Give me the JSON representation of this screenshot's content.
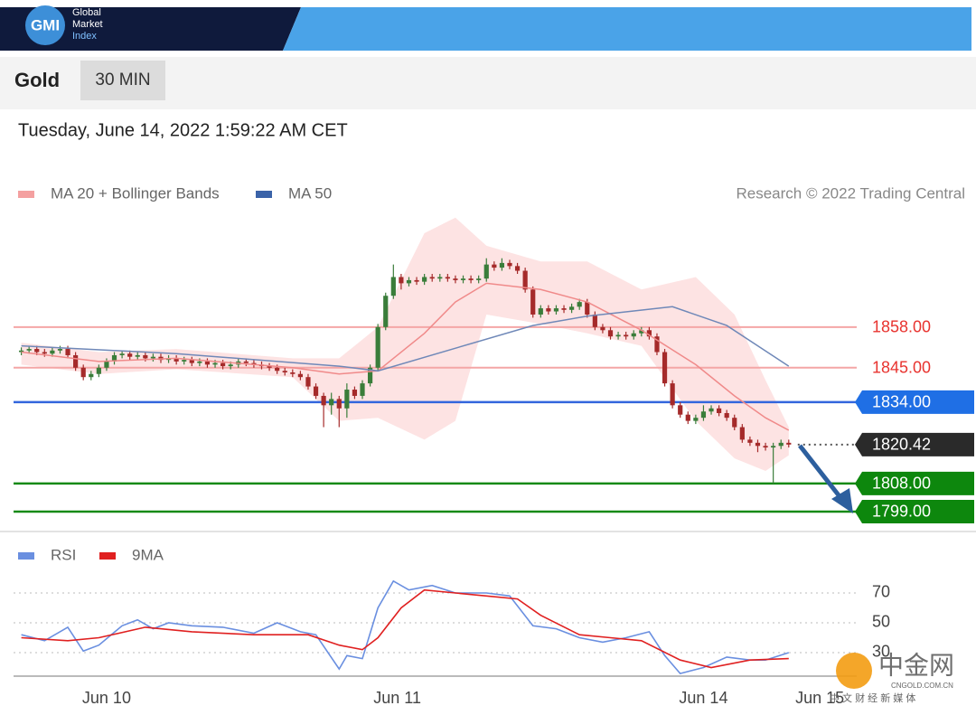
{
  "header": {
    "logo": "GMI",
    "brand": [
      "Global",
      "Market",
      "Index"
    ],
    "instrument": "Gold",
    "timeframe": "30 MIN",
    "timestamp": "Tuesday, June 14, 2022 1:59:22 AM CET"
  },
  "watermark": {
    "name": "中金网",
    "site": "CNGOLD.COM.CN",
    "tagline": "中 文 财 经 新 媒 体"
  },
  "chart_data": [
    {
      "type": "candlestick",
      "credit": "Research © 2022 Trading Central",
      "xlim": [
        -1,
        108
      ],
      "ylim": [
        1793.5,
        1893.5
      ],
      "up_color": "#3a7d3a",
      "down_color": "#a52a2a",
      "candles": {
        "open": [
          1850,
          1850.5,
          1851,
          1850,
          1849.5,
          1850.5,
          1851,
          1849,
          1845,
          1842,
          1843,
          1845,
          1847,
          1849,
          1849.5,
          1848.5,
          1849,
          1848,
          1848.5,
          1847.5,
          1848,
          1847,
          1847.5,
          1846.5,
          1847,
          1846,
          1846.5,
          1845.5,
          1846,
          1847,
          1846.5,
          1846,
          1845.5,
          1845,
          1844,
          1843.5,
          1843,
          1842,
          1839,
          1836,
          1833,
          1835,
          1832,
          1838,
          1836,
          1840,
          1845,
          1858,
          1868,
          1874,
          1872,
          1873,
          1872.5,
          1874,
          1873.5,
          1874,
          1873.5,
          1873,
          1873.5,
          1873,
          1873.5,
          1878,
          1877,
          1878.5,
          1877.5,
          1876,
          1870,
          1862,
          1864,
          1863,
          1864,
          1863.5,
          1864.5,
          1866,
          1862,
          1858,
          1857,
          1855,
          1855.5,
          1855,
          1856,
          1857,
          1855,
          1850,
          1840,
          1833,
          1830,
          1828,
          1829,
          1831,
          1832,
          1830.5,
          1829,
          1826,
          1822,
          1821,
          1820,
          1819.5,
          1820,
          1821
        ],
        "high": [
          1851.5,
          1852,
          1852,
          1851,
          1851.5,
          1852,
          1852,
          1850,
          1846,
          1844,
          1846,
          1848,
          1850,
          1850.5,
          1850.5,
          1850,
          1850,
          1849.5,
          1849.5,
          1849,
          1849,
          1848.5,
          1848.5,
          1848,
          1848,
          1847.5,
          1847.5,
          1847,
          1848,
          1848,
          1847.5,
          1847,
          1846.5,
          1846,
          1845,
          1844.5,
          1844,
          1843,
          1840,
          1837,
          1837,
          1836,
          1840,
          1839,
          1841,
          1846,
          1859,
          1869,
          1878,
          1875,
          1874,
          1874,
          1875,
          1875,
          1875,
          1875,
          1874.5,
          1874.5,
          1874.5,
          1874.5,
          1880,
          1879,
          1880,
          1879.5,
          1878.5,
          1877,
          1871,
          1865,
          1865,
          1865,
          1865,
          1865.5,
          1867,
          1867,
          1863,
          1859,
          1858,
          1856.5,
          1856.5,
          1857,
          1858,
          1858,
          1856,
          1851,
          1841,
          1834,
          1831,
          1830,
          1833,
          1833,
          1833,
          1831.5,
          1830,
          1827,
          1823,
          1822,
          1821,
          1821,
          1822,
          1822
        ],
        "low": [
          1849,
          1849.5,
          1849,
          1848.5,
          1848.5,
          1849.5,
          1848,
          1844,
          1841,
          1841,
          1842,
          1844,
          1846,
          1848,
          1847.5,
          1847.5,
          1847,
          1847,
          1846.5,
          1846.5,
          1846,
          1846,
          1845.5,
          1845.5,
          1845,
          1845,
          1844.5,
          1844.5,
          1845,
          1845.5,
          1845,
          1844.5,
          1844,
          1843,
          1842.5,
          1842,
          1841,
          1838,
          1835,
          1826,
          1830,
          1826,
          1829,
          1835,
          1835,
          1839,
          1844,
          1857,
          1867,
          1870,
          1871,
          1871.5,
          1871.5,
          1872.5,
          1872.5,
          1872.5,
          1872,
          1872,
          1872,
          1872,
          1872.5,
          1876,
          1876,
          1876.5,
          1875,
          1869,
          1861,
          1861,
          1862,
          1862,
          1862.5,
          1862.5,
          1863.5,
          1861,
          1857,
          1856,
          1854,
          1854,
          1854,
          1854,
          1855,
          1854,
          1849,
          1839,
          1832,
          1829,
          1827,
          1827,
          1828,
          1830,
          1829.5,
          1828,
          1825,
          1821,
          1820,
          1818,
          1818.5,
          1808,
          1819,
          1819.5
        ],
        "close": [
          1850.5,
          1851,
          1850,
          1849.5,
          1850.5,
          1851,
          1849,
          1845,
          1842,
          1843,
          1845,
          1847,
          1849,
          1849.5,
          1848.5,
          1849,
          1848,
          1848.5,
          1847.5,
          1848,
          1847,
          1847.5,
          1846.5,
          1847,
          1846,
          1846.5,
          1845.5,
          1846,
          1847,
          1846.5,
          1846,
          1845.5,
          1845,
          1844,
          1843.5,
          1843,
          1842,
          1839,
          1836,
          1833,
          1835,
          1832,
          1838,
          1836,
          1840,
          1845,
          1858,
          1868,
          1874,
          1872,
          1873,
          1872.5,
          1874,
          1873.5,
          1874,
          1873.5,
          1873,
          1873.5,
          1873,
          1873.5,
          1878,
          1877,
          1878.5,
          1877.5,
          1876,
          1870,
          1862,
          1864,
          1863,
          1864,
          1863.5,
          1864.5,
          1866,
          1862,
          1858,
          1857,
          1855,
          1855.5,
          1855,
          1856,
          1857,
          1855,
          1850,
          1840,
          1833,
          1830,
          1828,
          1829,
          1831,
          1832,
          1830.5,
          1829,
          1826,
          1822,
          1821,
          1820,
          1819.5,
          1820,
          1821,
          1820.42
        ]
      },
      "series": [
        {
          "name": "MA 20 + Bollinger Bands",
          "color": "#f4a0a0",
          "line_color": "#f08a8a",
          "band_color": "#fde3e3",
          "x": [
            0,
            10,
            20,
            35,
            41,
            46,
            52,
            56,
            60,
            67,
            73,
            80,
            87,
            92,
            96,
            99
          ],
          "values": [
            1850,
            1847,
            1848,
            1845,
            1843,
            1844,
            1856,
            1866,
            1872,
            1870,
            1866,
            1857,
            1846,
            1836,
            1829,
            1825
          ],
          "upper": [
            1853,
            1850,
            1851,
            1848,
            1848,
            1858,
            1888,
            1893,
            1884,
            1879,
            1879,
            1870,
            1874,
            1862,
            1841,
            1826
          ],
          "lower": [
            1846,
            1843,
            1844.5,
            1842,
            1828,
            1829,
            1822,
            1828,
            1862,
            1859,
            1856,
            1852,
            1828,
            1816,
            1812,
            1817
          ]
        },
        {
          "name": "MA 50",
          "color": "#3b63a8",
          "line_color": "#6f88b8",
          "x": [
            0,
            20,
            41,
            46,
            66,
            73,
            84,
            91,
            99
          ],
          "values": [
            1852,
            1849.5,
            1845.5,
            1844,
            1858.5,
            1861.5,
            1864.5,
            1858.5,
            1845.5
          ]
        }
      ],
      "levels": [
        {
          "value": 1858,
          "label": "1858.00",
          "color": "#e8332f",
          "line_color": "#f4a6a6",
          "boxed": false,
          "line_style": "solid"
        },
        {
          "value": 1845,
          "label": "1845.00",
          "color": "#e8332f",
          "line_color": "#f4a6a6",
          "boxed": false,
          "line_style": "solid"
        },
        {
          "value": 1834,
          "label": "1834.00",
          "color": "#1f6fe5",
          "line_color": "#3366dd",
          "boxed": true,
          "line_style": "solid"
        },
        {
          "value": 1820.42,
          "label": "1820.42",
          "color": "#2a2a2a",
          "line_color": "#555555",
          "boxed": true,
          "line_style": "dotted"
        },
        {
          "value": 1808,
          "label": "1808.00",
          "color": "#0d870d",
          "line_color": "#168a16",
          "boxed": true,
          "line_style": "solid"
        },
        {
          "value": 1799,
          "label": "1799.00",
          "color": "#0d870d",
          "line_color": "#168a16",
          "boxed": true,
          "line_style": "solid"
        }
      ]
    },
    {
      "type": "line",
      "xlim": [
        -1,
        108
      ],
      "ylim": [
        14,
        83
      ],
      "yticks": [
        30,
        50,
        70
      ],
      "grid": true,
      "xticks": [
        {
          "value": 11,
          "label": "Jun 10"
        },
        {
          "value": 48.5,
          "label": "Jun 11"
        },
        {
          "value": 88,
          "label": "Jun 14"
        },
        {
          "value": 103,
          "label": "Jun 15"
        }
      ],
      "series": [
        {
          "name": "RSI",
          "color": "#6a8fe0",
          "x": [
            0,
            3,
            6,
            8,
            10,
            13,
            15,
            17,
            19,
            22,
            26,
            30,
            33,
            36,
            38,
            41,
            42,
            44,
            46,
            48,
            50,
            53,
            56,
            60,
            63,
            66,
            69,
            72,
            75,
            78,
            81,
            83,
            85,
            88,
            91,
            94,
            96,
            99
          ],
          "values": [
            42,
            38,
            47,
            31,
            35,
            48,
            52,
            46,
            50,
            48,
            47,
            43,
            50,
            44,
            42,
            19,
            28,
            26,
            60,
            78,
            72,
            75,
            70,
            70,
            68,
            48,
            46,
            40,
            37,
            40,
            44,
            28,
            16,
            20,
            27,
            25,
            25,
            30
          ]
        },
        {
          "name": "9MA",
          "color": "#e02020",
          "x": [
            0,
            6,
            10,
            16,
            22,
            30,
            37,
            41,
            44,
            46,
            49,
            52,
            56,
            60,
            64,
            67,
            72,
            76,
            80,
            85,
            89,
            94,
            99
          ],
          "values": [
            40,
            38,
            40,
            47,
            44,
            42,
            42,
            35,
            32,
            40,
            60,
            72,
            70,
            68,
            66,
            55,
            42,
            40,
            38,
            25,
            20,
            25,
            26
          ]
        }
      ]
    }
  ]
}
